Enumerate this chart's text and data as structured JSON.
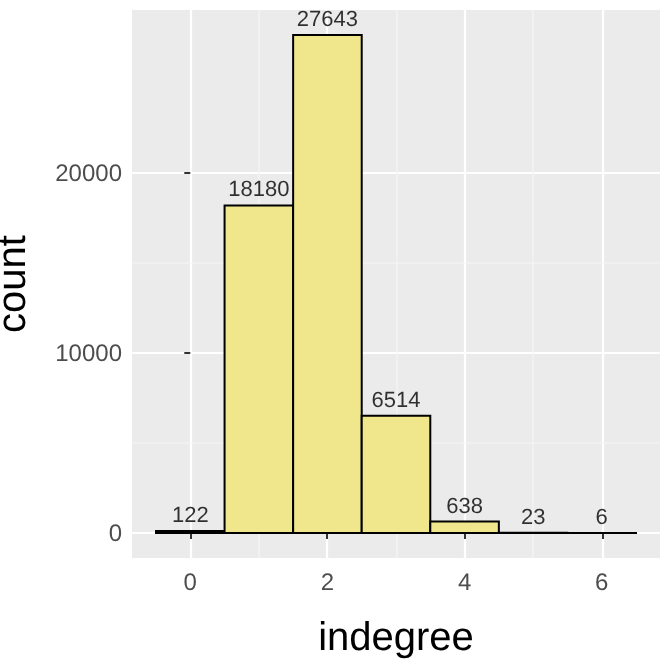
{
  "chart_data": {
    "type": "histogram",
    "xlabel": "indegree",
    "ylabel": "count",
    "bins": [
      -0.5,
      0.5,
      1.5,
      2.5,
      3.5,
      4.5,
      5.5,
      6.5
    ],
    "values": [
      122,
      18180,
      27643,
      6514,
      638,
      23,
      6
    ],
    "color": "#f0e68c",
    "xlim": [
      -0.85,
      6.85
    ],
    "xticks": [
      0,
      2,
      4,
      6
    ],
    "ylim": [
      -1382,
      29025
    ],
    "yticks": [
      0,
      10000,
      20000
    ],
    "grid": true,
    "data_labels": true
  }
}
